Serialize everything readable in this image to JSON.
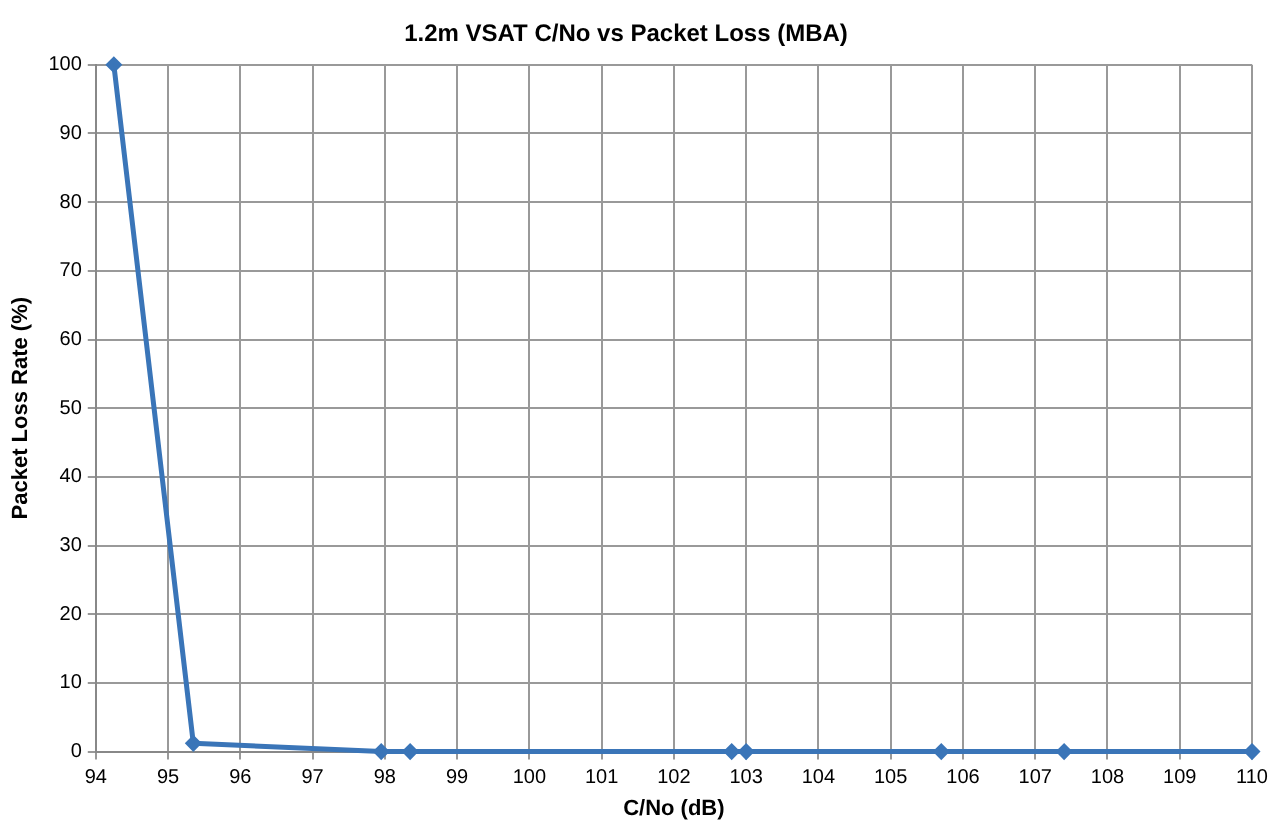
{
  "chart_data": {
    "type": "line",
    "title": "1.2m VSAT C/No vs Packet Loss (MBA)",
    "xlabel": "C/No (dB)",
    "ylabel": "Packet Loss Rate (%)",
    "x": [
      94.25,
      95.35,
      97.95,
      98.35,
      102.8,
      103,
      105.7,
      107.4,
      110
    ],
    "series": [
      {
        "color": "#3a75b8",
        "values": [
          100,
          1.2,
          0,
          0,
          0,
          0,
          0,
          0,
          0
        ]
      }
    ],
    "xlim": [
      94,
      110
    ],
    "xticks": [
      94,
      95,
      96,
      97,
      98,
      99,
      100,
      101,
      102,
      103,
      104,
      105,
      106,
      107,
      108,
      109,
      110
    ],
    "ylim": [
      0,
      100
    ],
    "yticks": [
      0,
      10,
      20,
      30,
      40,
      50,
      60,
      70,
      80,
      90,
      100
    ],
    "grid": true,
    "legend": false,
    "marker": "diamond",
    "line_style": "solid"
  }
}
